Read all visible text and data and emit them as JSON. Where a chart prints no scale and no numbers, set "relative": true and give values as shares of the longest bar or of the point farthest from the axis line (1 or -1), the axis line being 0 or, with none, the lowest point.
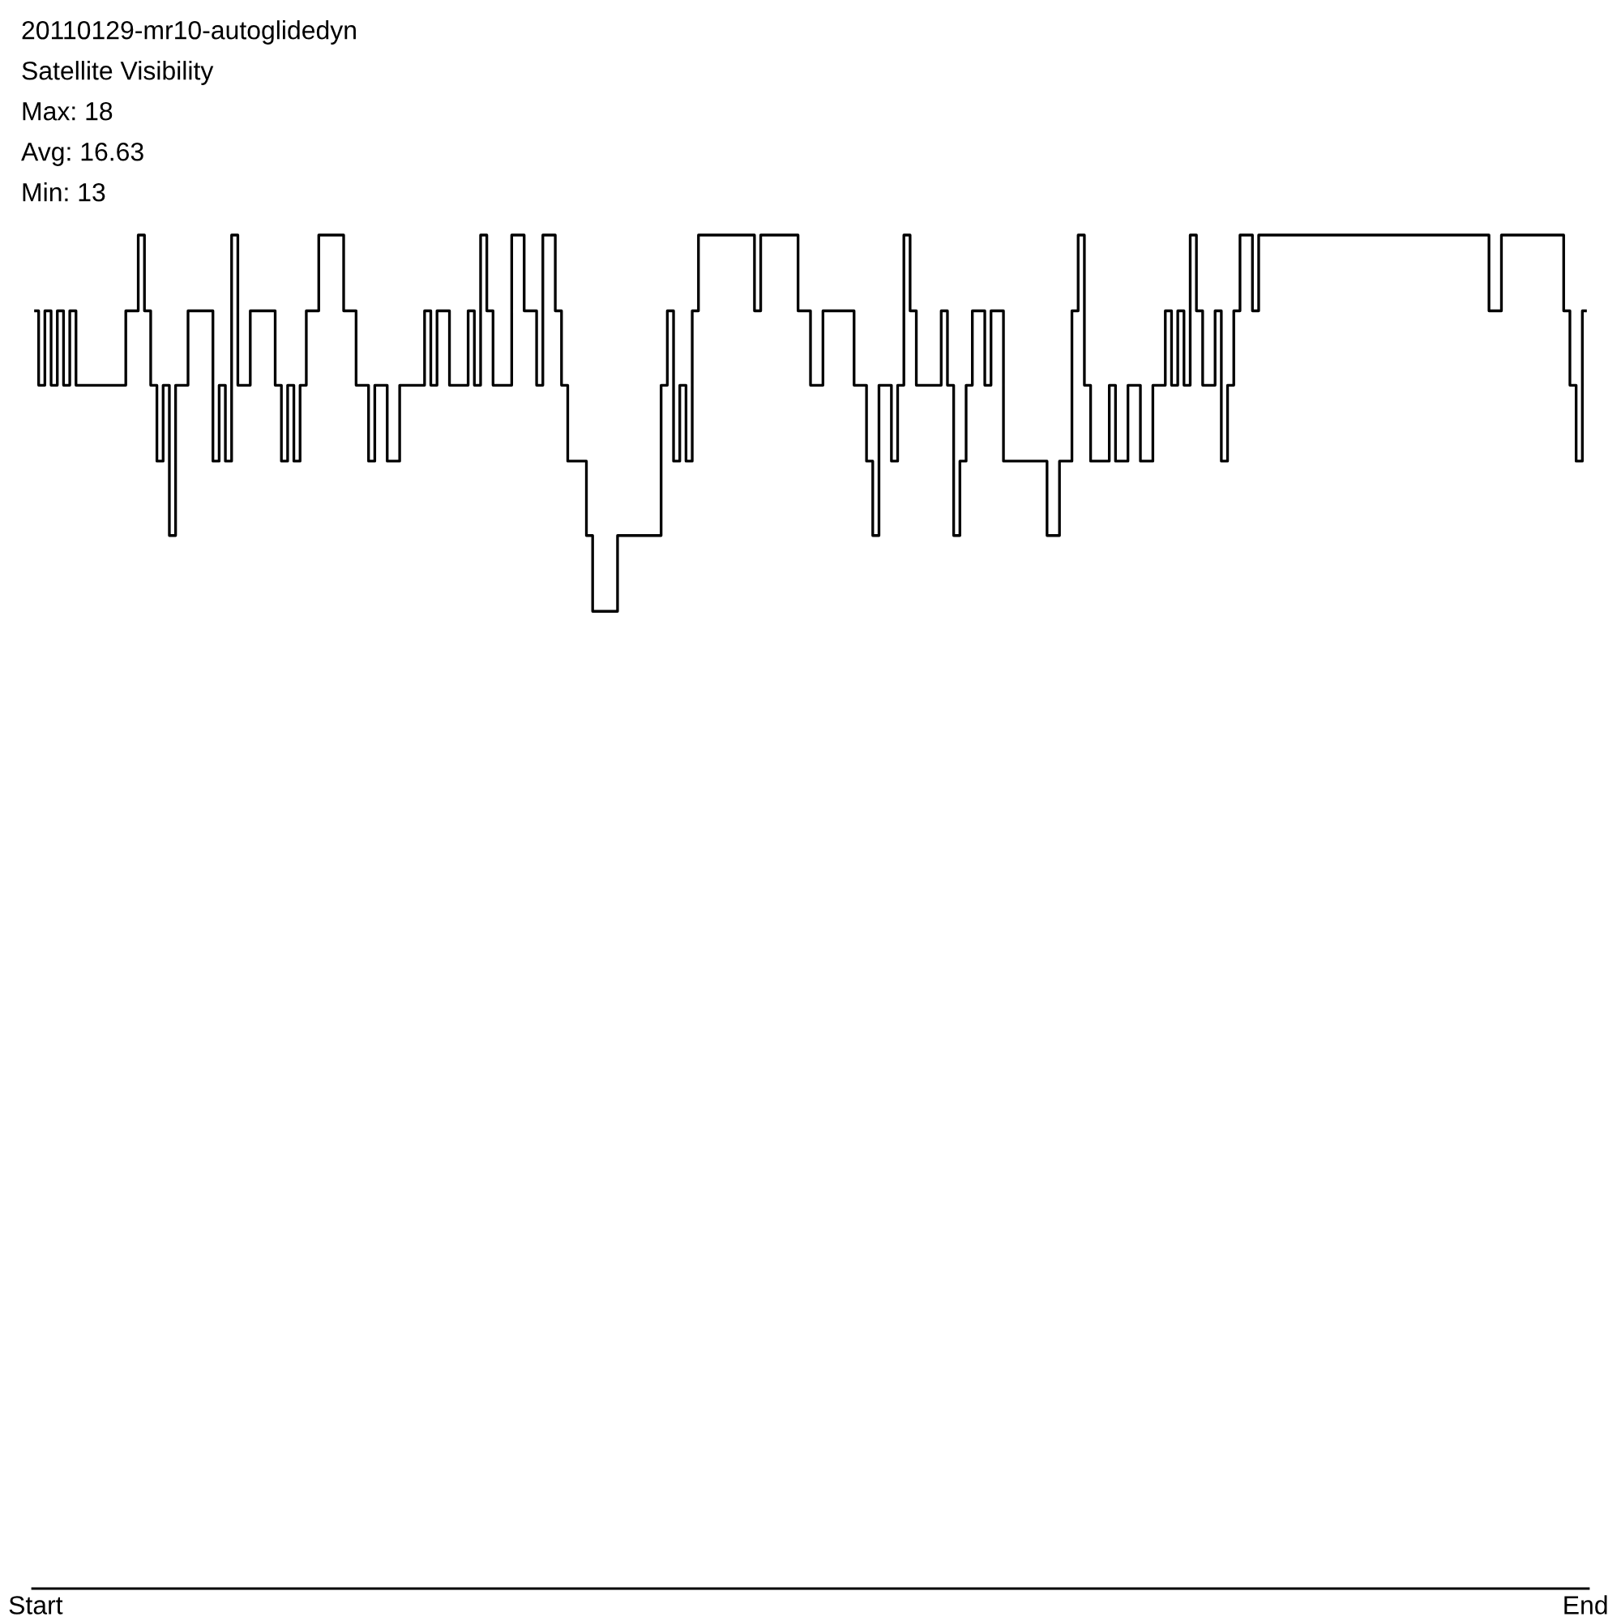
{
  "chart_data": {
    "type": "step",
    "title": "20110129-mr10-autoglidedyn",
    "subtitle": "Satellite Visibility",
    "annotations": [
      "Max: 18",
      "Avg: 16.63",
      "Min: 13"
    ],
    "relative": true,
    "color": "#000000",
    "categories": [
      "Start",
      null,
      null,
      null,
      null,
      null,
      null,
      null,
      null,
      null,
      null,
      null,
      null,
      null,
      null,
      null,
      null,
      null,
      null,
      null,
      null,
      null,
      null,
      null,
      null,
      null,
      null,
      null,
      null,
      null,
      null,
      null,
      null,
      null,
      null,
      null,
      null,
      null,
      null,
      null,
      null,
      null,
      null,
      null,
      null,
      null,
      null,
      null,
      null,
      null,
      null,
      null,
      null,
      null,
      null,
      null,
      null,
      null,
      null,
      null,
      null,
      null,
      null,
      null,
      null,
      null,
      null,
      null,
      null,
      null,
      null,
      null,
      null,
      null,
      null,
      null,
      null,
      null,
      null,
      null,
      null,
      null,
      null,
      null,
      null,
      null,
      null,
      null,
      null,
      null,
      null,
      null,
      null,
      null,
      null,
      null,
      null,
      null,
      null,
      null,
      null,
      null,
      null,
      null,
      null,
      null,
      null,
      null,
      null,
      null,
      null,
      null,
      null,
      null,
      null,
      null,
      null,
      null,
      null,
      null,
      null,
      null,
      null,
      null,
      null,
      null,
      null,
      null,
      null,
      null,
      null,
      null,
      null,
      null,
      null,
      null,
      null,
      null,
      null,
      null,
      null,
      null,
      null,
      null,
      null,
      null,
      null,
      null,
      null,
      null,
      null,
      null,
      null,
      null,
      null,
      null,
      null,
      null,
      null,
      null,
      null,
      null,
      null,
      null,
      null,
      null,
      null,
      null,
      null,
      null,
      null,
      null,
      null,
      null,
      null,
      null,
      null,
      null,
      null,
      null,
      null,
      null,
      null,
      null,
      null,
      null,
      null,
      null,
      null,
      null,
      null,
      null,
      null,
      null,
      null,
      null,
      null,
      null,
      null,
      null,
      null,
      null,
      null,
      null,
      null,
      null,
      null,
      null,
      null,
      null,
      null,
      null,
      null,
      null,
      null,
      null,
      null,
      null,
      null,
      null,
      null,
      null,
      null,
      null,
      null,
      null,
      null,
      null,
      null,
      null,
      null,
      null,
      null,
      null,
      null,
      null,
      null,
      null,
      null,
      null,
      null,
      null,
      null,
      null,
      null,
      null,
      null,
      null,
      null,
      "End"
    ],
    "values": [
      0.944,
      0.889,
      0.944,
      0.889,
      0.944,
      0.889,
      0.944,
      0.889,
      0.889,
      0.889,
      0.889,
      0.889,
      0.889,
      0.889,
      0.889,
      0.944,
      0.944,
      1,
      0.944,
      0.889,
      0.833,
      0.889,
      0.778,
      0.889,
      0.889,
      0.944,
      0.944,
      0.944,
      0.944,
      0.833,
      0.889,
      0.833,
      1,
      0.889,
      0.889,
      0.944,
      0.944,
      0.944,
      0.944,
      0.889,
      0.833,
      0.889,
      0.833,
      0.889,
      0.944,
      0.944,
      1,
      1,
      1,
      1,
      0.944,
      0.944,
      0.889,
      0.889,
      0.833,
      0.889,
      0.889,
      0.833,
      0.833,
      0.889,
      0.889,
      0.889,
      0.889,
      0.944,
      0.889,
      0.944,
      0.944,
      0.889,
      0.889,
      0.889,
      0.944,
      0.889,
      1,
      0.944,
      0.889,
      0.889,
      0.889,
      1,
      1,
      0.944,
      0.944,
      0.889,
      1,
      1,
      0.944,
      0.889,
      0.833,
      0.833,
      0.833,
      0.778,
      0.722,
      0.722,
      0.722,
      0.722,
      0.778,
      0.778,
      0.778,
      0.778,
      0.778,
      0.778,
      0.778,
      0.889,
      0.944,
      0.833,
      0.889,
      0.833,
      0.944,
      1,
      1,
      1,
      1,
      1,
      1,
      1,
      1,
      1,
      0.944,
      1,
      1,
      1,
      1,
      1,
      1,
      0.944,
      0.944,
      0.889,
      0.889,
      0.944,
      0.944,
      0.944,
      0.944,
      0.944,
      0.889,
      0.889,
      0.833,
      0.778,
      0.889,
      0.889,
      0.833,
      0.889,
      1,
      0.944,
      0.889,
      0.889,
      0.889,
      0.889,
      0.944,
      0.889,
      0.778,
      0.833,
      0.889,
      0.944,
      0.944,
      0.889,
      0.944,
      0.944,
      0.833,
      0.833,
      0.833,
      0.833,
      0.833,
      0.833,
      0.833,
      0.778,
      0.778,
      0.833,
      0.833,
      0.944,
      1,
      0.889,
      0.833,
      0.833,
      0.833,
      0.889,
      0.833,
      0.833,
      0.889,
      0.889,
      0.833,
      0.833,
      0.889,
      0.889,
      0.944,
      0.889,
      0.944,
      0.889,
      1,
      0.944,
      0.889,
      0.889,
      0.944,
      0.833,
      0.889,
      0.944,
      1,
      1,
      0.944,
      1,
      1,
      1,
      1,
      1,
      1,
      1,
      1,
      1,
      1,
      1,
      1,
      1,
      1,
      1,
      1,
      1,
      1,
      1,
      1,
      1,
      1,
      1,
      1,
      1,
      1,
      1,
      1,
      1,
      1,
      1,
      1,
      1,
      1,
      1,
      1,
      1,
      0.944,
      0.944,
      1,
      1,
      1,
      1,
      1,
      1,
      1,
      1,
      1,
      1,
      0.944,
      0.889,
      0.833,
      0.944
    ]
  }
}
